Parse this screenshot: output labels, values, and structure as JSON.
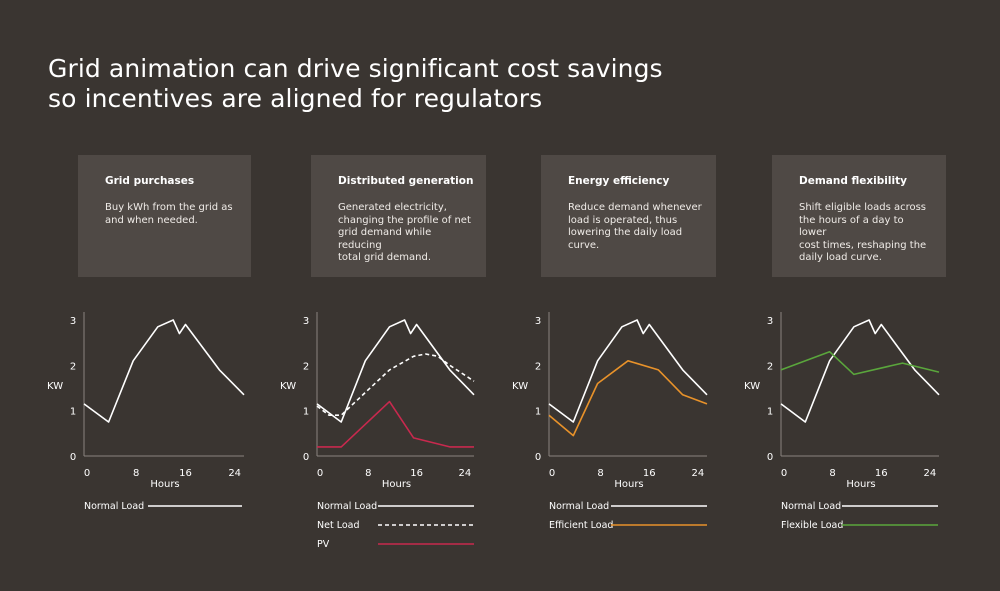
{
  "title_lines": [
    "Grid animation can drive significant cost savings",
    "so incentives are aligned for regulators"
  ],
  "cards": [
    {
      "title": "Grid purchases",
      "body": "Buy kWh from the grid as\nand when needed."
    },
    {
      "title": "Distributed generation",
      "body": "Generated electricity,\nchanging the profile of net\ngrid demand while reducing\ntotal grid demand."
    },
    {
      "title": "Energy  efficiency",
      "body": "Reduce demand whenever\nload is operated, thus\nlowering the daily load curve."
    },
    {
      "title": "Demand flexibility",
      "body": "Shift eligible loads across\nthe hours of a day to lower\ncost times, reshaping the\ndaily load curve."
    }
  ],
  "colors": {
    "background": "#3a3531",
    "card": "#4f4945",
    "normal": "#ffffff",
    "pv": "#c8294e",
    "efficient": "#e8922a",
    "flexible": "#5aa63c",
    "axis": "#8a847f"
  },
  "chart_data": [
    {
      "type": "line",
      "xlabel": "Hours",
      "ylabel": "KW",
      "xticks": [
        0,
        8,
        16,
        24
      ],
      "yticks": [
        0,
        1,
        2,
        3
      ],
      "xlim": [
        0,
        26
      ],
      "ylim": [
        0,
        3.2
      ],
      "series": [
        {
          "name": "Normal Load",
          "color": "#ffffff",
          "dashed": false,
          "x": [
            0,
            4,
            8,
            12,
            14.5,
            15.5,
            16.5,
            22,
            26
          ],
          "y": [
            1.15,
            0.75,
            2.1,
            2.85,
            3.0,
            2.7,
            2.9,
            1.9,
            1.35
          ]
        }
      ]
    },
    {
      "type": "line",
      "xlabel": "Hours",
      "ylabel": "KW",
      "xticks": [
        0,
        8,
        16,
        24
      ],
      "yticks": [
        0,
        1,
        2,
        3
      ],
      "xlim": [
        0,
        26
      ],
      "ylim": [
        0,
        3.2
      ],
      "series": [
        {
          "name": "Normal Load",
          "color": "#ffffff",
          "dashed": false,
          "x": [
            0,
            4,
            8,
            12,
            14.5,
            15.5,
            16.5,
            22,
            26
          ],
          "y": [
            1.15,
            0.75,
            2.1,
            2.85,
            3.0,
            2.7,
            2.9,
            1.9,
            1.35
          ]
        },
        {
          "name": "Net Load",
          "color": "#ffffff",
          "dashed": true,
          "x": [
            0,
            2,
            4,
            8,
            12,
            16,
            18,
            20,
            22,
            26
          ],
          "y": [
            1.1,
            0.9,
            0.9,
            1.4,
            1.9,
            2.2,
            2.25,
            2.2,
            2.0,
            1.65
          ]
        },
        {
          "name": "PV",
          "color": "#c8294e",
          "dashed": false,
          "x": [
            0,
            4,
            8,
            12,
            16,
            22,
            26
          ],
          "y": [
            0.2,
            0.2,
            0.7,
            1.2,
            0.4,
            0.2,
            0.2
          ]
        }
      ]
    },
    {
      "type": "line",
      "xlabel": "Hours",
      "ylabel": "KW",
      "xticks": [
        0,
        8,
        16,
        24
      ],
      "yticks": [
        0,
        1,
        2,
        3
      ],
      "xlim": [
        0,
        26
      ],
      "ylim": [
        0,
        3.2
      ],
      "series": [
        {
          "name": "Normal Load",
          "color": "#ffffff",
          "dashed": false,
          "x": [
            0,
            4,
            8,
            12,
            14.5,
            15.5,
            16.5,
            22,
            26
          ],
          "y": [
            1.15,
            0.75,
            2.1,
            2.85,
            3.0,
            2.7,
            2.9,
            1.9,
            1.35
          ]
        },
        {
          "name": "Efficient Load",
          "color": "#e8922a",
          "dashed": false,
          "x": [
            0,
            4,
            8,
            13,
            18,
            22,
            26
          ],
          "y": [
            0.9,
            0.45,
            1.6,
            2.1,
            1.9,
            1.35,
            1.15
          ]
        }
      ]
    },
    {
      "type": "line",
      "xlabel": "Hours",
      "ylabel": "KW",
      "xticks": [
        0,
        8,
        16,
        24
      ],
      "yticks": [
        0,
        1,
        2,
        3
      ],
      "xlim": [
        0,
        26
      ],
      "ylim": [
        0,
        3.2
      ],
      "series": [
        {
          "name": "Normal Load",
          "color": "#ffffff",
          "dashed": false,
          "x": [
            0,
            4,
            8,
            12,
            14.5,
            15.5,
            16.5,
            22,
            26
          ],
          "y": [
            1.15,
            0.75,
            2.1,
            2.85,
            3.0,
            2.7,
            2.9,
            1.9,
            1.35
          ]
        },
        {
          "name": "Flexible Load",
          "color": "#5aa63c",
          "dashed": false,
          "x": [
            0,
            8,
            12,
            20,
            26
          ],
          "y": [
            1.9,
            2.3,
            1.8,
            2.05,
            1.85
          ]
        }
      ]
    }
  ]
}
